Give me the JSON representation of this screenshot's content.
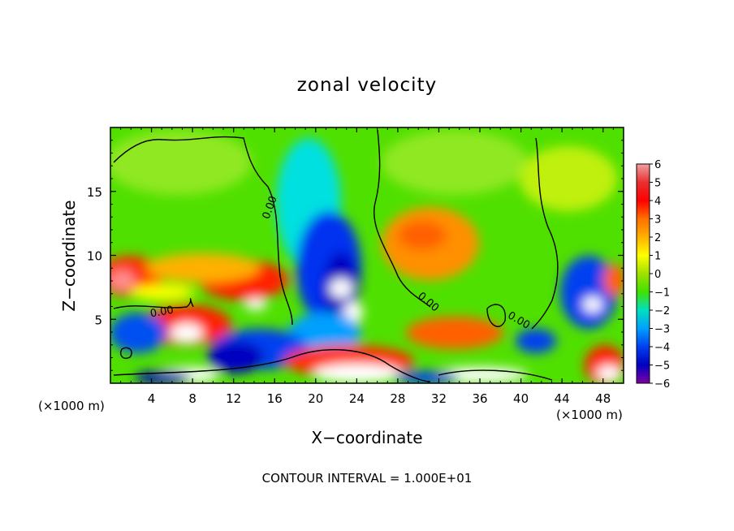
{
  "chart_data": {
    "type": "heatmap",
    "title": "zonal velocity",
    "xlabel": "X−coordinate",
    "ylabel": "Z−coordinate",
    "x_unit_left": "(×1000 m)",
    "x_unit_right": "(×1000 m)",
    "xlim": [
      0,
      50
    ],
    "ylim": [
      0,
      20
    ],
    "x_ticks": [
      4,
      8,
      12,
      16,
      20,
      24,
      28,
      32,
      36,
      40,
      44,
      48
    ],
    "y_ticks": [
      5,
      10,
      15
    ],
    "contour_labels": [
      "0.00",
      "0.00",
      "0.00",
      "0.00"
    ],
    "footer": "CONTOUR INTERVAL = 1.000E+01",
    "colorbar": {
      "ticks": [
        "6",
        "5",
        "4",
        "3",
        "2",
        "1",
        "0",
        "−1",
        "−2",
        "−3",
        "−4",
        "−5",
        "−6"
      ],
      "colors": [
        "#f0a0a0",
        "#e83030",
        "#ff0000",
        "#ff7000",
        "#ffb000",
        "#ffff00",
        "#a0e000",
        "#40e000",
        "#00e0c0",
        "#00a0ff",
        "#0040f0",
        "#0000c0",
        "#8000a0"
      ]
    }
  }
}
